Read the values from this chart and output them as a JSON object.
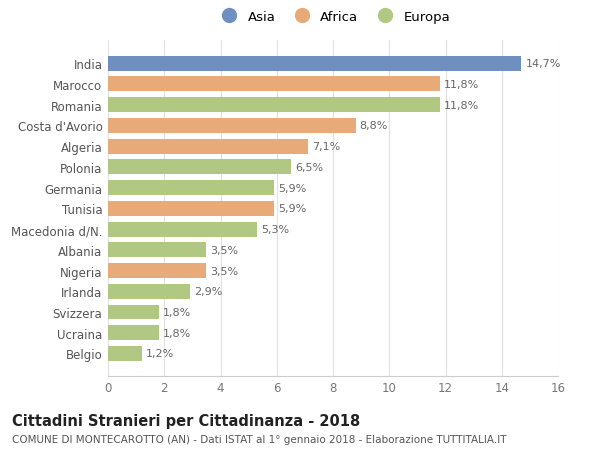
{
  "countries": [
    "India",
    "Marocco",
    "Romania",
    "Costa d'Avorio",
    "Algeria",
    "Polonia",
    "Germania",
    "Tunisia",
    "Macedonia d/N.",
    "Albania",
    "Nigeria",
    "Irlanda",
    "Svizzera",
    "Ucraina",
    "Belgio"
  ],
  "values": [
    14.7,
    11.8,
    11.8,
    8.8,
    7.1,
    6.5,
    5.9,
    5.9,
    5.3,
    3.5,
    3.5,
    2.9,
    1.8,
    1.8,
    1.2
  ],
  "labels": [
    "14,7%",
    "11,8%",
    "11,8%",
    "8,8%",
    "7,1%",
    "6,5%",
    "5,9%",
    "5,9%",
    "5,3%",
    "3,5%",
    "3,5%",
    "2,9%",
    "1,8%",
    "1,8%",
    "1,2%"
  ],
  "categories": [
    "Asia",
    "Africa",
    "Europa",
    "Africa",
    "Africa",
    "Europa",
    "Europa",
    "Africa",
    "Europa",
    "Europa",
    "Africa",
    "Europa",
    "Europa",
    "Europa",
    "Europa"
  ],
  "colors": {
    "Asia": "#6e8fc0",
    "Africa": "#e8aa78",
    "Europa": "#b0c882"
  },
  "legend_order": [
    "Asia",
    "Africa",
    "Europa"
  ],
  "xlim": [
    0,
    16
  ],
  "xticks": [
    0,
    2,
    4,
    6,
    8,
    10,
    12,
    14,
    16
  ],
  "title": "Cittadini Stranieri per Cittadinanza - 2018",
  "subtitle": "COMUNE DI MONTECAROTTO (AN) - Dati ISTAT al 1° gennaio 2018 - Elaborazione TUTTITALIA.IT",
  "title_fontsize": 10.5,
  "subtitle_fontsize": 7.5,
  "background_color": "#ffffff",
  "grid_color": "#e0e0e0",
  "bar_height": 0.72
}
